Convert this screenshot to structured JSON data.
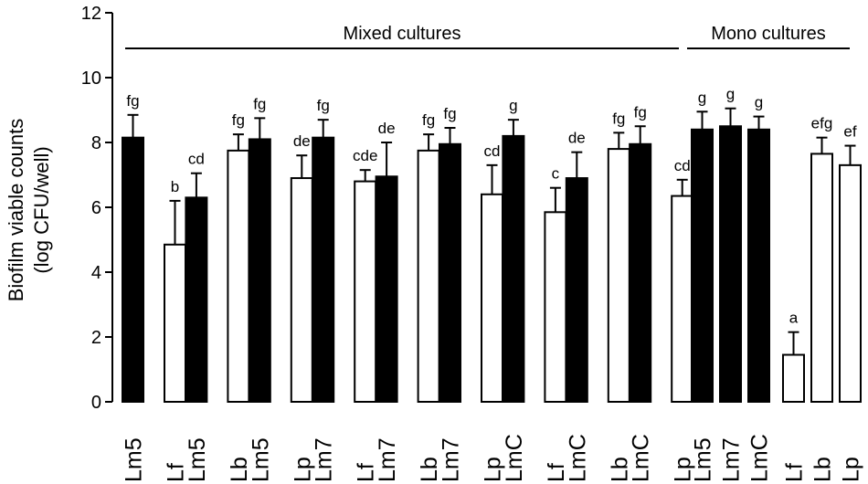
{
  "chart_data": {
    "type": "bar",
    "title": "",
    "ylabel_line1": "Biofilm viable counts",
    "ylabel_line2": "(log CFU/well)",
    "ylim": [
      0,
      12
    ],
    "yticks": [
      "0",
      "2",
      "4",
      "6",
      "8",
      "10",
      "12"
    ],
    "groups": [
      {
        "label": "Mixed cultures",
        "first": 0,
        "last": 17
      },
      {
        "label": "Mono cultures",
        "first": 18,
        "last": 23
      }
    ],
    "bars": [
      {
        "label1": "Lm5",
        "label2": "",
        "value": 8.15,
        "error": 0.7,
        "fill": "black",
        "letter": "fg"
      },
      {
        "label1": "Lf",
        "label2": "",
        "value": 4.85,
        "error": 1.35,
        "fill": "white",
        "letter": "b"
      },
      {
        "label1": "Lm5",
        "label2": "",
        "value": 6.3,
        "error": 0.75,
        "fill": "black",
        "letter": "cd"
      },
      {
        "label1": "Lb",
        "label2": "",
        "value": 7.75,
        "error": 0.5,
        "fill": "white",
        "letter": "fg"
      },
      {
        "label1": "Lm5",
        "label2": "",
        "value": 8.1,
        "error": 0.65,
        "fill": "black",
        "letter": "fg"
      },
      {
        "label1": "Lp",
        "label2": "",
        "value": 6.9,
        "error": 0.7,
        "fill": "white",
        "letter": "de"
      },
      {
        "label1": "Lm7",
        "label2": "",
        "value": 8.15,
        "error": 0.55,
        "fill": "black",
        "letter": "fg"
      },
      {
        "label1": "Lf",
        "label2": "",
        "value": 6.8,
        "error": 0.35,
        "fill": "white",
        "letter": "cde"
      },
      {
        "label1": "Lm7",
        "label2": "",
        "value": 6.95,
        "error": 1.05,
        "fill": "black",
        "letter": "de"
      },
      {
        "label1": "Lb",
        "label2": "",
        "value": 7.75,
        "error": 0.5,
        "fill": "white",
        "letter": "fg"
      },
      {
        "label1": "Lm7",
        "label2": "",
        "value": 7.95,
        "error": 0.5,
        "fill": "black",
        "letter": "fg"
      },
      {
        "label1": "Lp",
        "label2": "",
        "value": 6.4,
        "error": 0.9,
        "fill": "white",
        "letter": "cd"
      },
      {
        "label1": "LmC",
        "label2": "",
        "value": 8.2,
        "error": 0.5,
        "fill": "black",
        "letter": "g"
      },
      {
        "label1": "Lf",
        "label2": "",
        "value": 5.85,
        "error": 0.75,
        "fill": "white",
        "letter": "c"
      },
      {
        "label1": "LmC",
        "label2": "",
        "value": 6.9,
        "error": 0.8,
        "fill": "black",
        "letter": "de"
      },
      {
        "label1": "Lb",
        "label2": "",
        "value": 7.8,
        "error": 0.5,
        "fill": "white",
        "letter": "fg"
      },
      {
        "label1": "LmC",
        "label2": "",
        "value": 7.95,
        "error": 0.55,
        "fill": "black",
        "letter": "fg"
      },
      {
        "label1": "Lp",
        "label2": "",
        "value": 6.35,
        "error": 0.5,
        "fill": "white",
        "letter": "cd"
      },
      {
        "label1": "Lm5",
        "label2": "",
        "value": 8.4,
        "error": 0.55,
        "fill": "black",
        "letter": "g"
      },
      {
        "label1": "Lm7",
        "label2": "",
        "value": 8.5,
        "error": 0.55,
        "fill": "black",
        "letter": "g"
      },
      {
        "label1": "LmC",
        "label2": "",
        "value": 8.4,
        "error": 0.4,
        "fill": "black",
        "letter": "g"
      },
      {
        "label1": "Lf",
        "label2": "",
        "value": 1.45,
        "error": 0.7,
        "fill": "white",
        "letter": "a"
      },
      {
        "label1": "Lb",
        "label2": "",
        "value": 7.65,
        "error": 0.5,
        "fill": "white",
        "letter": "efg"
      },
      {
        "label1": "Lp",
        "label2": "",
        "value": 7.3,
        "error": 0.6,
        "fill": "white",
        "letter": "ef"
      }
    ]
  }
}
